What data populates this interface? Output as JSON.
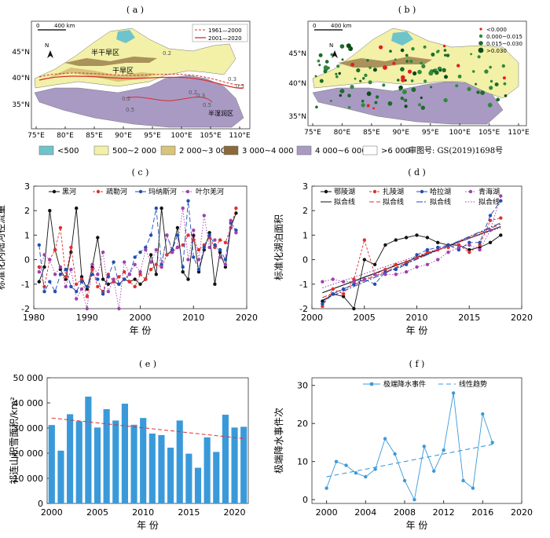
{
  "panels": {
    "a": {
      "label": "( a )",
      "lon_ticks": [
        "75°E",
        "80°E",
        "85°E",
        "90°E",
        "95°E",
        "100°E",
        "105°E",
        "110°E"
      ],
      "lat_ticks": [
        "45°N",
        "40°N",
        "35°N"
      ],
      "scale_text": "0",
      "scale_km": "400 km",
      "north": "N",
      "legend": [
        "1961—2000",
        "2001—2020"
      ],
      "region_labels": [
        "半干旱区",
        "干旱区",
        "半湿润区"
      ],
      "contour_labels": [
        "0.2",
        "0.3",
        "0.5",
        "0.2",
        "0.5",
        "0.3",
        "0.5",
        "0.2"
      ]
    },
    "b": {
      "label": "( b )",
      "lon_ticks": [
        "75°E",
        "80°E",
        "85°E",
        "90°E",
        "95°E",
        "100°E",
        "105°E",
        "110°E"
      ],
      "lat_ticks": [
        "45°N",
        "40°N",
        "35°N"
      ],
      "scale_text": "0",
      "scale_km": "400 km",
      "north": "N",
      "legend": [
        "<0.000",
        "0.000~0.015",
        "0.015~0.030",
        ">0.030"
      ],
      "legend_colors": [
        "#e02020",
        "#2e8b3a",
        "#1f6b2a",
        "#0d4a1a"
      ]
    },
    "map_legend": [
      {
        "label": "<500",
        "color": "#6fc4cc"
      },
      {
        "label": "500~2 000",
        "color": "#f3f0a8"
      },
      {
        "label": "2 000~3 000",
        "color": "#d8c47a"
      },
      {
        "label": "3 000~4 000",
        "color": "#8a6a3a"
      },
      {
        "label": "4 000~6 000",
        "color": "#a99ac4"
      },
      {
        "label": ">6 000",
        "color": "#ffffff"
      }
    ],
    "map_note": "审图号: GS(2019)1698号"
  },
  "chart_data": [
    {
      "id": "c",
      "type": "line",
      "label": "( c )",
      "ylabel": "标准化内陆河径流量",
      "xlabel": "年 份",
      "xlim": [
        1980,
        2020
      ],
      "ylim": [
        -2,
        3
      ],
      "xticks": [
        1980,
        1990,
        2000,
        2010,
        2020
      ],
      "yticks": [
        -2,
        -1,
        0,
        1,
        2,
        3
      ],
      "series": [
        {
          "name": "黑河",
          "color": "#111111",
          "dash": "",
          "marker": "circle",
          "x": [
            1981,
            1982,
            1983,
            1984,
            1985,
            1986,
            1987,
            1988,
            1989,
            1990,
            1991,
            1992,
            1993,
            1994,
            1995,
            1996,
            1997,
            1998,
            1999,
            2000,
            2001,
            2002,
            2003,
            2004,
            2005,
            2006,
            2007,
            2008,
            2009,
            2010,
            2011,
            2012,
            2013,
            2014,
            2015,
            2016,
            2017,
            2018
          ],
          "values": [
            -0.9,
            -0.3,
            2.0,
            0.4,
            -0.4,
            -0.8,
            0.3,
            2.1,
            -0.7,
            -1.2,
            -0.3,
            0.9,
            -0.8,
            -1.0,
            -0.9,
            -1.0,
            -0.8,
            -0.9,
            -0.8,
            -1.0,
            -0.8,
            0.2,
            -0.6,
            2.1,
            0.2,
            0.4,
            1.3,
            -0.5,
            -0.8,
            1.0,
            -0.5,
            0.4,
            1.1,
            -1.0,
            0.3,
            -0.3,
            1.3,
            1.9
          ]
        },
        {
          "name": "疏勒河",
          "color": "#e03030",
          "dash": "3,2",
          "marker": "circle",
          "x": [
            1981,
            1982,
            1983,
            1984,
            1985,
            1986,
            1987,
            1988,
            1989,
            1990,
            1991,
            1992,
            1993,
            1994,
            1995,
            1996,
            1997,
            1998,
            1999,
            2000,
            2001,
            2002,
            2003,
            2004,
            2005,
            2006,
            2007,
            2008,
            2009,
            2010,
            2011,
            2012,
            2013,
            2014,
            2015,
            2016,
            2017,
            2018
          ],
          "values": [
            -0.3,
            -1.1,
            0.0,
            0.4,
            1.3,
            -0.7,
            0.5,
            -1.0,
            -0.8,
            -1.5,
            -0.4,
            -1.1,
            -1.3,
            -0.6,
            -0.9,
            -0.7,
            -0.5,
            -0.9,
            -1.1,
            -0.6,
            -0.8,
            -0.4,
            -0.2,
            -0.3,
            0.2,
            0.3,
            0.5,
            0.6,
            1.0,
            0.8,
            0.4,
            0.6,
            0.9,
            0.5,
            0.8,
            0.7,
            1.3,
            2.1
          ]
        },
        {
          "name": "玛纳斯河",
          "color": "#1f4fb4",
          "dash": "6,3",
          "marker": "circle",
          "x": [
            1981,
            1982,
            1983,
            1984,
            1985,
            1986,
            1987,
            1988,
            1989,
            1990,
            1991,
            1992,
            1993,
            1994,
            1995,
            1996,
            1997,
            1998,
            1999,
            2000,
            2001,
            2002,
            2003,
            2004,
            2005,
            2006,
            2007,
            2008,
            2009,
            2010,
            2011,
            2012,
            2013,
            2014,
            2015,
            2016,
            2017,
            2018
          ],
          "values": [
            0.6,
            -1.3,
            -0.9,
            -1.3,
            -0.6,
            -0.4,
            -1.1,
            -1.3,
            -0.9,
            -1.1,
            -0.6,
            -0.8,
            -1.4,
            -0.7,
            -0.1,
            -1.0,
            -0.8,
            -0.6,
            0.1,
            0.3,
            0.5,
            1.0,
            2.1,
            -0.2,
            1.0,
            0.4,
            1.0,
            -0.3,
            2.4,
            0.1,
            -0.4,
            0.5,
            1.0,
            0.6,
            0.4,
            0.0,
            1.5,
            1.2
          ]
        },
        {
          "name": "叶尔羌河",
          "color": "#a040b0",
          "dash": "1.5,2",
          "marker": "circle",
          "x": [
            1981,
            1982,
            1983,
            1984,
            1985,
            1986,
            1987,
            1988,
            1989,
            1990,
            1991,
            1992,
            1993,
            1994,
            1995,
            1996,
            1997,
            1998,
            1999,
            2000,
            2001,
            2002,
            2003,
            2004,
            2005,
            2006,
            2007,
            2008,
            2009,
            2010,
            2011,
            2012,
            2013,
            2014,
            2015,
            2016,
            2017,
            2018
          ],
          "values": [
            -0.5,
            0.2,
            0.0,
            -0.6,
            -0.3,
            -1.1,
            -0.4,
            -1.6,
            -1.2,
            -2.0,
            -0.2,
            -0.6,
            0.3,
            -1.3,
            -0.8,
            -2.0,
            -0.1,
            -0.6,
            -0.2,
            -0.5,
            0.4,
            -0.1,
            0.4,
            -0.3,
            1.0,
            0.3,
            0.5,
            2.1,
            0.0,
            1.2,
            0.0,
            1.8,
            0.5,
            0.8,
            0.1,
            -0.2,
            1.6,
            1.1
          ]
        }
      ]
    },
    {
      "id": "d",
      "type": "line",
      "label": "( d )",
      "ylabel": "标准化湖泊面积",
      "xlabel": "年 份",
      "xlim": [
        2000,
        2020
      ],
      "ylim": [
        -2,
        3
      ],
      "xticks": [
        2000,
        2005,
        2010,
        2015,
        2020
      ],
      "yticks": [
        -2,
        -1,
        0,
        1,
        2,
        3
      ],
      "series": [
        {
          "name": "鄂陵湖",
          "color": "#111111",
          "dash": "",
          "marker": "circle",
          "x": [
            2001,
            2002,
            2003,
            2004,
            2005,
            2006,
            2007,
            2008,
            2009,
            2010,
            2011,
            2012,
            2013,
            2014,
            2015,
            2016,
            2017,
            2018
          ],
          "values": [
            -1.7,
            -1.4,
            -1.5,
            -2.0,
            0.0,
            -0.2,
            0.6,
            0.8,
            0.9,
            1.0,
            0.9,
            0.7,
            0.6,
            0.6,
            0.4,
            0.5,
            0.7,
            1.0
          ]
        },
        {
          "name": "扎陵湖",
          "color": "#e03030",
          "dash": "3,2",
          "marker": "circle",
          "x": [
            2001,
            2002,
            2003,
            2004,
            2005,
            2006,
            2007,
            2008,
            2009,
            2010,
            2011,
            2012,
            2013,
            2014,
            2015,
            2016,
            2017,
            2018
          ],
          "values": [
            -1.9,
            -1.2,
            -1.4,
            -0.8,
            0.8,
            -0.6,
            -0.4,
            -0.2,
            -0.1,
            0.1,
            0.3,
            0.4,
            0.5,
            0.6,
            0.3,
            0.6,
            1.6,
            1.7
          ]
        },
        {
          "name": "哈拉湖",
          "color": "#1f4fb4",
          "dash": "6,3",
          "marker": "circle",
          "x": [
            2001,
            2002,
            2003,
            2004,
            2005,
            2006,
            2007,
            2008,
            2009,
            2010,
            2011,
            2012,
            2013,
            2014,
            2015,
            2016,
            2017,
            2018
          ],
          "values": [
            -1.8,
            -1.4,
            -1.2,
            -1.0,
            -0.8,
            -1.0,
            -0.5,
            -0.4,
            -0.2,
            0.2,
            0.4,
            0.5,
            0.6,
            0.4,
            0.7,
            0.7,
            1.8,
            2.4
          ]
        },
        {
          "name": "青海湖",
          "color": "#a040b0",
          "dash": "1.5,2",
          "marker": "circle",
          "x": [
            2001,
            2002,
            2003,
            2004,
            2005,
            2006,
            2007,
            2008,
            2009,
            2010,
            2011,
            2012,
            2013,
            2014,
            2015,
            2016,
            2017,
            2018
          ],
          "values": [
            -0.9,
            -0.8,
            -0.9,
            -0.9,
            -0.8,
            -0.6,
            -0.6,
            -0.6,
            -0.5,
            -0.3,
            -0.2,
            0.0,
            0.3,
            0.5,
            0.6,
            0.4,
            1.2,
            2.6
          ]
        }
      ],
      "fits": [
        {
          "name": "拟合线",
          "color": "#111111",
          "dash": "",
          "x": [
            2001,
            2018
          ],
          "values": [
            -1.35,
            1.35
          ]
        },
        {
          "name": "拟合线",
          "color": "#e03030",
          "dash": "6,3",
          "x": [
            2001,
            2018
          ],
          "values": [
            -1.55,
            1.45
          ]
        },
        {
          "name": "拟合线",
          "color": "#1f4fb4",
          "dash": "8,2,2,2",
          "x": [
            2001,
            2018
          ],
          "values": [
            -1.65,
            1.5
          ]
        },
        {
          "name": "拟合线",
          "color": "#a040b0",
          "dash": "1.5,2",
          "x": [
            2001,
            2018
          ],
          "values": [
            -1.15,
            1.3
          ]
        }
      ]
    },
    {
      "id": "e",
      "type": "bar",
      "label": "( e )",
      "ylabel": "祁连山积雪面积/km²",
      "xlabel": "年 份",
      "xlim": [
        1999.5,
        2021.5
      ],
      "ylim": [
        0,
        50000
      ],
      "xticks": [
        2000,
        2005,
        2010,
        2015,
        2020
      ],
      "yticks": [
        0,
        10000,
        20000,
        30000,
        40000,
        50000
      ],
      "ytick_labels": [
        "0",
        "10 000",
        "20 000",
        "30 000",
        "40 000",
        "50 000"
      ],
      "color": "#3a9ad9",
      "x": [
        2000,
        2001,
        2002,
        2003,
        2004,
        2005,
        2006,
        2007,
        2008,
        2009,
        2010,
        2011,
        2012,
        2013,
        2014,
        2015,
        2016,
        2017,
        2018,
        2019,
        2020,
        2021
      ],
      "values": [
        31200,
        21000,
        35500,
        32700,
        42500,
        30200,
        37500,
        33000,
        39700,
        31300,
        34000,
        27800,
        27200,
        22200,
        33000,
        19800,
        14200,
        26300,
        20500,
        35300,
        30200,
        30500
      ],
      "trend": {
        "x": [
          2000,
          2021
        ],
        "values": [
          34000,
          25800
        ],
        "color": "#e03030"
      }
    },
    {
      "id": "f",
      "type": "line",
      "label": "( f )",
      "ylabel": "极端降水事件次",
      "xlabel": "年 份",
      "xlim": [
        1998.5,
        2020
      ],
      "ylim": [
        -1,
        32
      ],
      "xticks": [
        2000,
        2004,
        2008,
        2012,
        2016,
        2020
      ],
      "yticks": [
        0,
        10,
        20,
        30
      ],
      "series": [
        {
          "name": "极端降水事件",
          "color": "#3a9ad9",
          "dash": "",
          "marker": "circle",
          "x": [
            2000,
            2001,
            2002,
            2003,
            2004,
            2005,
            2006,
            2007,
            2008,
            2009,
            2010,
            2011,
            2012,
            2013,
            2014,
            2015,
            2016,
            2017
          ],
          "values": [
            3,
            10,
            9,
            7,
            6,
            8,
            16,
            12,
            5,
            0,
            14,
            7.5,
            13,
            28,
            5,
            3,
            22.5,
            15
          ]
        }
      ],
      "fits": [
        {
          "name": "线性趋势",
          "color": "#3a9ad9",
          "dash": "6,4",
          "x": [
            2000,
            2017
          ],
          "values": [
            6,
            14.5
          ]
        }
      ]
    }
  ]
}
